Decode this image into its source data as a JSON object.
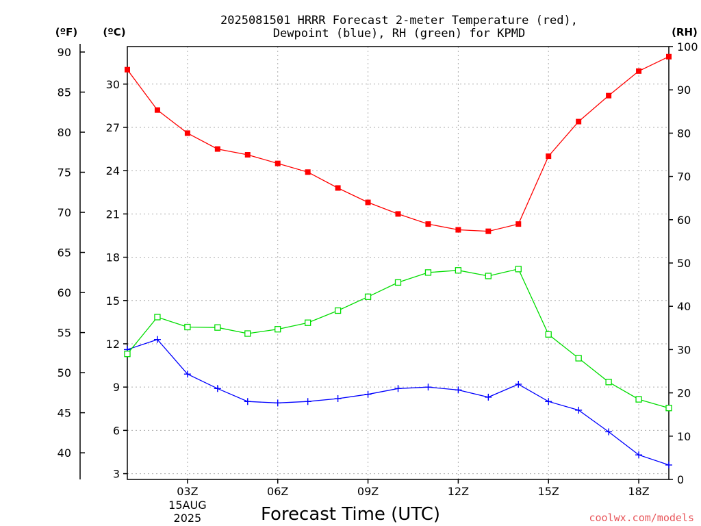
{
  "chart_data": {
    "type": "line",
    "title": "2025081501 HRRR Forecast 2-meter Temperature (red),",
    "subtitle": "Dewpoint (blue), RH (green) for KPMD",
    "xlabel": "Forecast Time (UTC)",
    "credit": "coolwx.com/models",
    "units": {
      "fahrenheit": "(ºF)",
      "celsius": "(ºC)",
      "rh": "(RH)"
    },
    "x_hours": [
      1,
      2,
      3,
      4,
      5,
      6,
      7,
      8,
      9,
      10,
      11,
      12,
      13,
      14,
      15,
      16,
      17,
      18,
      19
    ],
    "x_range": [
      1,
      19
    ],
    "x_ticks": [
      {
        "hour": 3,
        "label": "03Z",
        "sub1": "15AUG",
        "sub2": "2025"
      },
      {
        "hour": 6,
        "label": "06Z",
        "sub1": "",
        "sub2": ""
      },
      {
        "hour": 9,
        "label": "09Z",
        "sub1": "",
        "sub2": ""
      },
      {
        "hour": 12,
        "label": "12Z",
        "sub1": "",
        "sub2": ""
      },
      {
        "hour": 15,
        "label": "15Z",
        "sub1": "",
        "sub2": ""
      },
      {
        "hour": 18,
        "label": "18Z",
        "sub1": "",
        "sub2": ""
      }
    ],
    "ylim_celsius": [
      2.6,
      32.6
    ],
    "yticks_celsius": [
      3,
      6,
      9,
      12,
      15,
      18,
      21,
      24,
      27,
      30
    ],
    "yticks_fahrenheit": [
      40,
      45,
      50,
      55,
      60,
      65,
      70,
      75,
      80,
      85,
      90
    ],
    "ylim_rh": [
      0,
      100
    ],
    "yticks_rh": [
      0,
      10,
      20,
      30,
      40,
      50,
      60,
      70,
      80,
      90,
      100
    ],
    "grid": true,
    "series": [
      {
        "name": "Temperature",
        "color": "#ff0000",
        "marker": "filled-square",
        "axis": "celsius",
        "values": [
          31.0,
          28.2,
          26.6,
          25.5,
          25.1,
          24.5,
          23.9,
          22.8,
          21.8,
          21.0,
          20.3,
          19.9,
          19.8,
          20.3,
          25.0,
          27.4,
          29.2,
          30.9,
          31.9
        ]
      },
      {
        "name": "Dewpoint",
        "color": "#0000ff",
        "marker": "plus",
        "axis": "celsius",
        "values": [
          11.6,
          12.3,
          9.9,
          8.9,
          8.0,
          7.9,
          8.0,
          8.2,
          8.5,
          8.9,
          9.0,
          8.8,
          8.3,
          9.2,
          8.0,
          7.4,
          5.9,
          4.3,
          3.6
        ]
      },
      {
        "name": "RH",
        "color": "#00dd00",
        "marker": "open-square",
        "axis": "rh",
        "values": [
          29.0,
          37.5,
          35.2,
          35.1,
          33.7,
          34.7,
          36.2,
          39.0,
          42.2,
          45.5,
          47.8,
          48.3,
          47.0,
          48.6,
          33.5,
          28.0,
          22.5,
          18.5,
          16.5
        ]
      }
    ]
  }
}
